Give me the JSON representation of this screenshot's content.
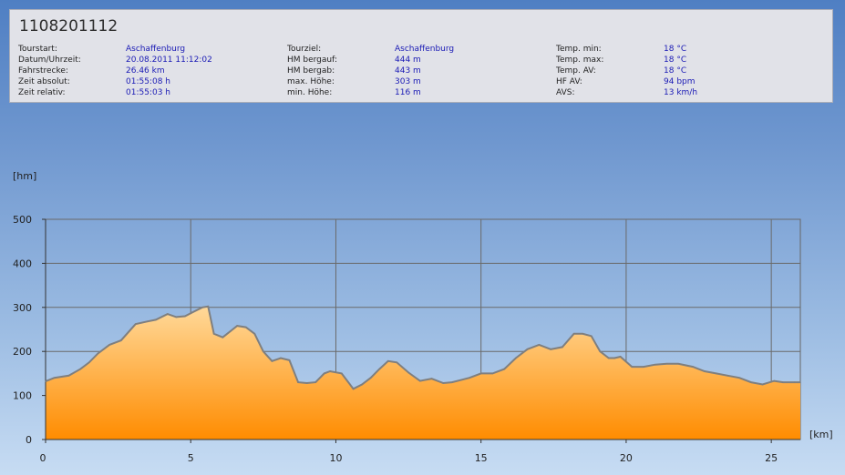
{
  "tour": {
    "id": "1108201112",
    "col1": [
      {
        "label": "Tourstart:",
        "value": "Aschaffenburg"
      },
      {
        "label": "Datum/Uhrzeit:",
        "value": "20.08.2011 11:12:02"
      },
      {
        "label": "Fahrstrecke:",
        "value": "26.46 km"
      },
      {
        "label": "Zeit absolut:",
        "value": "01:55:08 h"
      },
      {
        "label": "Zeit relativ:",
        "value": "01:55:03 h"
      }
    ],
    "col2": [
      {
        "label": "Tourziel:",
        "value": "Aschaffenburg"
      },
      {
        "label": "HM bergauf:",
        "value": "444 m"
      },
      {
        "label": "HM bergab:",
        "value": "443 m"
      },
      {
        "label": "max. Höhe:",
        "value": "303 m"
      },
      {
        "label": "min. Höhe:",
        "value": "116 m"
      }
    ],
    "col3": [
      {
        "label": "Temp. min:",
        "value": "18 °C"
      },
      {
        "label": "Temp. max:",
        "value": "18 °C"
      },
      {
        "label": "Temp. AV:",
        "value": "18 °C"
      },
      {
        "label": "HF AV:",
        "value": "94 bpm"
      },
      {
        "label": "AVS:",
        "value": "13 km/h"
      }
    ]
  },
  "chart_data": {
    "type": "area",
    "xlabel": "[km]",
    "ylabel": "[hm]",
    "xlim": [
      0,
      26
    ],
    "ylim": [
      0,
      500
    ],
    "xticks": [
      0,
      5,
      10,
      15,
      20,
      25
    ],
    "yticks": [
      0,
      100,
      200,
      300,
      400,
      500
    ],
    "grid": true,
    "colors": {
      "fill_top": "#ffd99a",
      "fill_bottom": "#ff8c00",
      "line": "#7f7f7f"
    },
    "x": [
      0,
      0.3,
      0.8,
      1.2,
      1.5,
      1.8,
      2.2,
      2.6,
      3.1,
      3.5,
      3.8,
      4.2,
      4.5,
      4.8,
      5.1,
      5.4,
      5.6,
      5.8,
      6.1,
      6.6,
      6.9,
      7.2,
      7.5,
      7.8,
      8.1,
      8.4,
      8.7,
      9.0,
      9.3,
      9.6,
      9.8,
      10.2,
      10.6,
      10.9,
      11.2,
      11.5,
      11.8,
      12.1,
      12.5,
      12.9,
      13.3,
      13.7,
      14.0,
      14.3,
      14.6,
      15.0,
      15.4,
      15.8,
      16.2,
      16.6,
      17.0,
      17.4,
      17.8,
      18.2,
      18.5,
      18.8,
      19.1,
      19.4,
      19.6,
      19.8,
      20.2,
      20.6,
      21.0,
      21.4,
      21.8,
      22.3,
      22.7,
      23.1,
      23.5,
      23.9,
      24.3,
      24.7,
      25.1,
      25.4,
      25.8,
      26.0
    ],
    "values": [
      132,
      140,
      145,
      160,
      175,
      195,
      215,
      225,
      262,
      268,
      272,
      285,
      278,
      280,
      290,
      300,
      302,
      240,
      232,
      258,
      255,
      240,
      200,
      178,
      185,
      180,
      130,
      128,
      130,
      150,
      155,
      150,
      115,
      125,
      140,
      160,
      178,
      175,
      152,
      133,
      138,
      128,
      130,
      135,
      140,
      150,
      150,
      160,
      185,
      205,
      215,
      205,
      210,
      240,
      240,
      235,
      200,
      185,
      185,
      188,
      165,
      165,
      170,
      172,
      172,
      165,
      155,
      150,
      145,
      140,
      130,
      125,
      133,
      130,
      130,
      130
    ]
  }
}
